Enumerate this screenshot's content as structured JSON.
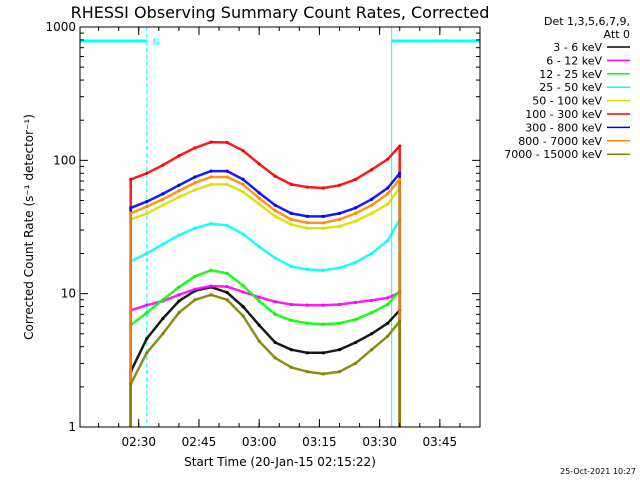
{
  "chart_data": {
    "type": "line",
    "title": "RHESSI Observing Summary Count Rates, Corrected",
    "xlabel": "Start Time (20-Jan-15 02:15:22)",
    "ylabel": "Corrected Count Rate (s⁻¹ detector⁻¹)",
    "yscale": "log",
    "ylim": [
      1,
      1000
    ],
    "xlim": [
      "02:15:22",
      "03:55:00"
    ],
    "x_ticks": [
      "02:30",
      "02:45",
      "03:00",
      "03:15",
      "03:30",
      "03:45"
    ],
    "y_ticks": [
      "1",
      "10",
      "100",
      "1000"
    ],
    "legend_header": [
      "Det 1,3,5,6,7,9,",
      "Att 0"
    ],
    "legend_position": "right, outside plot",
    "timestamp": "25-Oct-2021 10:27",
    "night_marker_label": "N",
    "data_window": [
      "02:28:00",
      "03:35:00"
    ],
    "spacecraft_night": [
      {
        "start": "02:15:22",
        "end": "02:32:00"
      },
      {
        "start": "03:33:00",
        "end": "03:55:00"
      }
    ],
    "time_samples": [
      "02:28",
      "02:32",
      "02:36",
      "02:40",
      "02:44",
      "02:48",
      "02:52",
      "02:56",
      "03:00",
      "03:04",
      "03:08",
      "03:12",
      "03:16",
      "03:20",
      "03:24",
      "03:28",
      "03:32",
      "03:35"
    ],
    "series": [
      {
        "name": "3 - 6 keV",
        "color": "#000000",
        "values": [
          2.6,
          4.6,
          6.5,
          8.8,
          10.5,
          11.2,
          10.2,
          8.0,
          5.8,
          4.3,
          3.8,
          3.6,
          3.6,
          3.8,
          4.3,
          5.0,
          6.0,
          7.5
        ]
      },
      {
        "name": "6 - 12 keV",
        "color": "#ff00ff",
        "values": [
          7.5,
          8.2,
          8.8,
          9.8,
          10.8,
          11.4,
          11.3,
          10.3,
          9.4,
          8.7,
          8.3,
          8.2,
          8.2,
          8.3,
          8.6,
          8.9,
          9.3,
          10.2
        ]
      },
      {
        "name": "12 - 25 keV",
        "color": "#00ff00",
        "values": [
          5.8,
          7.2,
          9.0,
          11.2,
          13.5,
          15.0,
          14.2,
          11.5,
          8.8,
          7.0,
          6.3,
          6.0,
          5.9,
          6.0,
          6.4,
          7.2,
          8.3,
          10.5
        ]
      },
      {
        "name": "25 - 50 keV",
        "color": "#00ffff",
        "values": [
          17.5,
          20.0,
          23.5,
          27.5,
          31.0,
          33.5,
          32.5,
          28.0,
          22.5,
          18.5,
          16.0,
          15.2,
          15.0,
          15.6,
          17.2,
          20.0,
          25.0,
          36.0
        ]
      },
      {
        "name": "50 - 100 keV",
        "color": "#dddd00",
        "values": [
          36,
          40,
          46,
          53,
          60,
          66,
          66,
          58,
          47,
          38,
          33,
          31,
          31,
          32,
          35,
          40,
          47,
          62
        ]
      },
      {
        "name": "100 - 300 keV",
        "color": "#ff0000",
        "values": [
          72,
          80,
          92,
          108,
          124,
          137,
          136,
          118,
          94,
          76,
          66,
          63,
          62,
          65,
          72,
          85,
          102,
          128
        ]
      },
      {
        "name": "300 - 800 keV",
        "color": "#0000ff",
        "values": [
          44,
          49,
          56,
          65,
          75,
          83,
          83,
          72,
          57,
          46,
          40,
          38,
          38,
          40,
          44,
          51,
          62,
          80
        ]
      },
      {
        "name": "800 - 7000 keV",
        "color": "#ff8800",
        "values": [
          40,
          45,
          51,
          59,
          68,
          75,
          75,
          66,
          52,
          42,
          36,
          34,
          34,
          36,
          40,
          46,
          56,
          72
        ]
      },
      {
        "name": "7000 - 15000 keV",
        "color": "#808000",
        "values": [
          2.1,
          3.6,
          5.0,
          7.2,
          9.0,
          9.8,
          9.0,
          6.8,
          4.4,
          3.3,
          2.8,
          2.6,
          2.5,
          2.6,
          3.0,
          3.8,
          4.8,
          6.2
        ]
      }
    ]
  }
}
